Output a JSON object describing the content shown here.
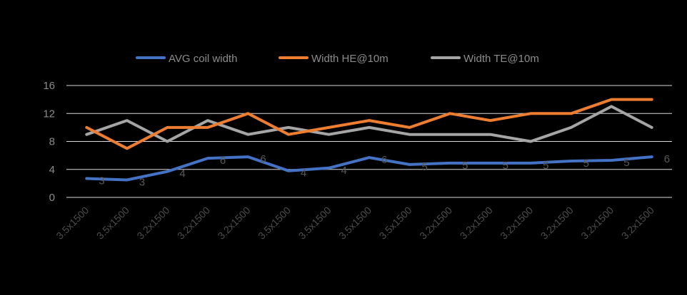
{
  "chart_data": {
    "type": "line",
    "categories": [
      "3.5x1500",
      "3.5x1500",
      "3.2x1500",
      "3.2x1500",
      "3.2x1500",
      "3.5x1500",
      "3.5x1500",
      "3.5x1500",
      "3.5x1500",
      "3.2x1500",
      "3.2x1500",
      "3.2x1500",
      "3.2x1500",
      "3.2x1500",
      "3.2x1500"
    ],
    "ylim": [
      0,
      16
    ],
    "yticks": [
      "0",
      "4",
      "8",
      "12",
      "16"
    ],
    "grid": true,
    "legend_position": "top",
    "series": [
      {
        "name": "AVG coil width",
        "color": "#4472c4",
        "values": [
          2.7,
          2.5,
          3.7,
          5.6,
          5.8,
          3.8,
          4.2,
          5.7,
          4.7,
          4.9,
          4.9,
          4.9,
          5.2,
          5.3,
          5.8
        ],
        "labels": [
          "3",
          "3",
          "4",
          "6",
          "6",
          "4",
          "4",
          "6",
          "5",
          "5",
          "5",
          "5",
          "5",
          "5",
          "6"
        ]
      },
      {
        "name": "Width HE@10m",
        "color": "#ed7d31",
        "values": [
          10,
          7,
          10,
          10,
          12,
          9,
          10,
          11,
          10,
          12,
          11,
          12,
          12,
          14,
          14
        ]
      },
      {
        "name": "Width TE@10m",
        "color": "#a5a5a5",
        "values": [
          9,
          11,
          8,
          11,
          9,
          10,
          9,
          10,
          9,
          9,
          9,
          8,
          10,
          13,
          10
        ]
      }
    ]
  }
}
